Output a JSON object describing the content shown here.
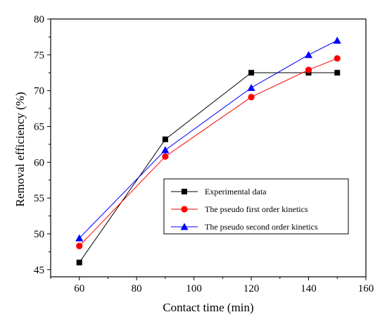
{
  "chart_data": {
    "type": "line",
    "title": "",
    "xlabel": "Contact time (min)",
    "ylabel": "Removal efficiency (%)",
    "xlim": [
      50,
      160
    ],
    "ylim": [
      44,
      80
    ],
    "xticks": [
      60,
      80,
      100,
      120,
      140,
      160
    ],
    "yticks": [
      45,
      50,
      55,
      60,
      65,
      70,
      75,
      80
    ],
    "grid": false,
    "legend_position": "lower-right",
    "series": [
      {
        "name": "Experimental data",
        "color": "#000000",
        "marker": "square",
        "x": [
          60,
          90,
          120,
          140,
          150
        ],
        "y": [
          46.0,
          63.2,
          72.5,
          72.5,
          72.5
        ]
      },
      {
        "name": "The pseudo first order kinetics",
        "color": "#ff0000",
        "marker": "circle",
        "x": [
          60,
          90,
          120,
          140,
          150
        ],
        "y": [
          48.3,
          60.8,
          69.1,
          72.9,
          74.5
        ]
      },
      {
        "name": "The pseudo second order kinetics",
        "color": "#0000ff",
        "marker": "triangle",
        "x": [
          60,
          90,
          120,
          140,
          150
        ],
        "y": [
          49.4,
          61.7,
          70.4,
          75.0,
          77.0
        ]
      }
    ]
  }
}
